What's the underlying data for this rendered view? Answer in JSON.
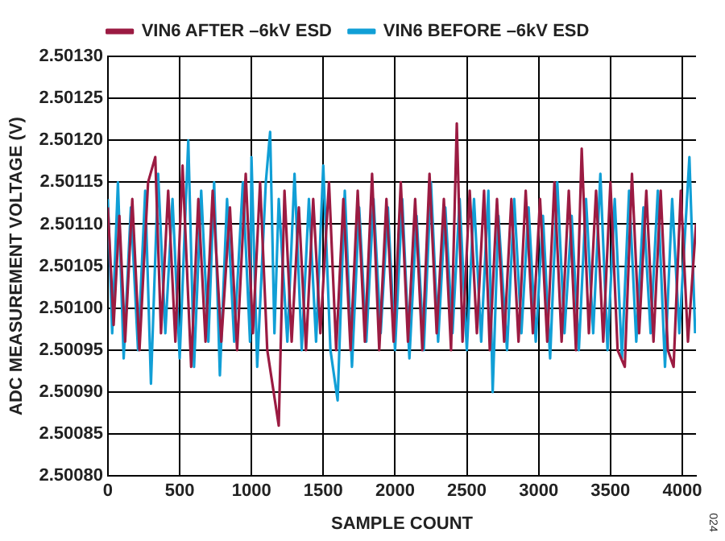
{
  "chart_data": {
    "type": "line",
    "xlabel": "SAMPLE COUNT",
    "ylabel": "ADC MEASUREMENT VOLTAGE (V)",
    "xlim": [
      0,
      4096
    ],
    "xticks": [
      0,
      500,
      1000,
      1500,
      2000,
      2500,
      3000,
      3500,
      4000
    ],
    "ylim": [
      2.5008,
      2.5013
    ],
    "yticks": [
      {
        "value": 2.5008,
        "label": "2.50080"
      },
      {
        "value": 2.50085,
        "label": "2.50085"
      },
      {
        "value": 2.5009,
        "label": "2.50090"
      },
      {
        "value": 2.50095,
        "label": "2.50095"
      },
      {
        "value": 2.501,
        "label": "2.50100"
      },
      {
        "value": 2.50105,
        "label": "2.50105"
      },
      {
        "value": 2.5011,
        "label": "2.50110"
      },
      {
        "value": 2.50115,
        "label": "2.50115"
      },
      {
        "value": 2.5012,
        "label": "2.50120"
      },
      {
        "value": 2.50125,
        "label": "2.50125"
      },
      {
        "value": 2.5013,
        "label": "2.50130"
      }
    ],
    "grid": true,
    "legend": "top",
    "marker": "none",
    "line_style": "solid",
    "annotations": [
      "024"
    ],
    "series": [
      {
        "name": "VIN6 BEFORE –6kV ESD",
        "color": "#119fd6",
        "x": [
          0,
          30,
          70,
          110,
          160,
          210,
          260,
          300,
          350,
          400,
          450,
          500,
          560,
          600,
          650,
          700,
          740,
          780,
          830,
          880,
          940,
          990,
          1000,
          1040,
          1100,
          1130,
          1160,
          1190,
          1250,
          1300,
          1350,
          1400,
          1450,
          1500,
          1550,
          1600,
          1650,
          1700,
          1750,
          1800,
          1850,
          1900,
          1950,
          2000,
          2050,
          2100,
          2150,
          2200,
          2250,
          2300,
          2350,
          2400,
          2450,
          2500,
          2550,
          2600,
          2650,
          2680,
          2720,
          2780,
          2830,
          2880,
          2930,
          2980,
          3030,
          3080,
          3130,
          3180,
          3230,
          3280,
          3330,
          3380,
          3430,
          3480,
          3530,
          3580,
          3630,
          3680,
          3730,
          3780,
          3830,
          3880,
          3930,
          3980,
          4050,
          4090
        ],
        "values": [
          2.50113,
          2.50097,
          2.50115,
          2.50094,
          2.50112,
          2.50095,
          2.50114,
          2.50091,
          2.50116,
          2.50097,
          2.50113,
          2.50094,
          2.5012,
          2.50093,
          2.50114,
          2.50096,
          2.50115,
          2.50092,
          2.50113,
          2.50096,
          2.50115,
          2.50096,
          2.50118,
          2.50093,
          2.50115,
          2.50121,
          2.50097,
          2.50113,
          2.50096,
          2.50116,
          2.50095,
          2.50113,
          2.50096,
          2.50117,
          2.50095,
          2.50089,
          2.50114,
          2.50093,
          2.50112,
          2.50096,
          2.50113,
          2.50097,
          2.50112,
          2.50095,
          2.50113,
          2.50094,
          2.50111,
          2.50095,
          2.50115,
          2.50096,
          2.50112,
          2.50097,
          2.50113,
          2.50095,
          2.50113,
          2.50096,
          2.50114,
          2.5009,
          2.50111,
          2.50095,
          2.50113,
          2.50097,
          2.50112,
          2.50096,
          2.50111,
          2.50094,
          2.50115,
          2.50097,
          2.50111,
          2.50095,
          2.50113,
          2.50097,
          2.50116,
          2.50095,
          2.50113,
          2.50094,
          2.50114,
          2.50096,
          2.50112,
          2.50097,
          2.50114,
          2.50093,
          2.50113,
          2.50097,
          2.50118,
          2.50097
        ]
      },
      {
        "name": "VIN6 AFTER –6kV ESD",
        "color": "#9b1b42",
        "x": [
          0,
          40,
          80,
          120,
          170,
          220,
          280,
          330,
          370,
          420,
          470,
          520,
          580,
          630,
          680,
          730,
          790,
          850,
          900,
          960,
          1010,
          1060,
          1110,
          1190,
          1230,
          1280,
          1330,
          1380,
          1430,
          1480,
          1540,
          1590,
          1640,
          1690,
          1740,
          1790,
          1840,
          1890,
          1940,
          1990,
          2040,
          2090,
          2140,
          2190,
          2240,
          2290,
          2340,
          2390,
          2430,
          2470,
          2520,
          2570,
          2620,
          2660,
          2710,
          2760,
          2810,
          2860,
          2910,
          2960,
          3010,
          3060,
          3110,
          3160,
          3210,
          3260,
          3300,
          3350,
          3400,
          3450,
          3500,
          3550,
          3600,
          3650,
          3700,
          3750,
          3800,
          3850,
          3900,
          3940,
          3990,
          4040,
          4096
        ],
        "values": [
          2.50112,
          2.50098,
          2.50111,
          2.50096,
          2.50113,
          2.50095,
          2.50115,
          2.50118,
          2.50097,
          2.50114,
          2.50096,
          2.50117,
          2.50093,
          2.50113,
          2.50096,
          2.50114,
          2.50096,
          2.50112,
          2.50095,
          2.50116,
          2.50097,
          2.50115,
          2.50095,
          2.50086,
          2.50114,
          2.50096,
          2.50112,
          2.50095,
          2.50113,
          2.50097,
          2.50115,
          2.50095,
          2.50113,
          2.50095,
          2.50114,
          2.50096,
          2.50116,
          2.50095,
          2.50113,
          2.50096,
          2.50115,
          2.50096,
          2.50113,
          2.50095,
          2.50116,
          2.50097,
          2.50113,
          2.50095,
          2.50122,
          2.50096,
          2.50114,
          2.50097,
          2.50114,
          2.50095,
          2.50113,
          2.50096,
          2.50113,
          2.50096,
          2.50114,
          2.50097,
          2.50113,
          2.50096,
          2.50115,
          2.50096,
          2.50114,
          2.50095,
          2.50119,
          2.50097,
          2.50114,
          2.50096,
          2.50115,
          2.50095,
          2.50093,
          2.50116,
          2.50097,
          2.50114,
          2.50096,
          2.50114,
          2.50095,
          2.50093,
          2.50114,
          2.50096,
          2.5011
        ]
      }
    ]
  }
}
